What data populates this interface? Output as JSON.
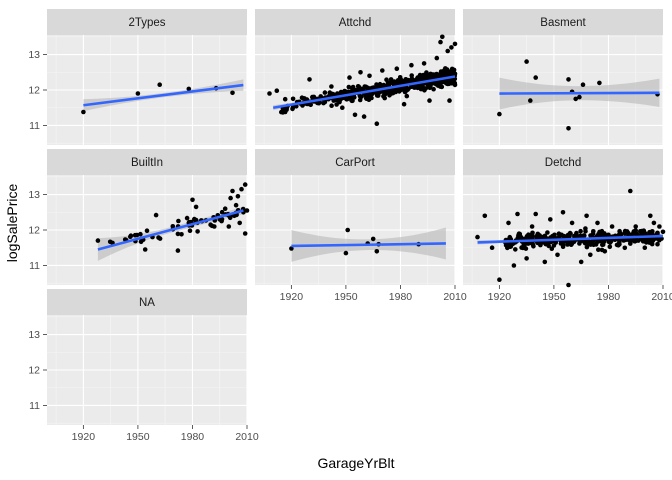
{
  "chart_data": {
    "type": "scatter",
    "facet_by": "GarageType",
    "xlabel": "GarageYrBlt",
    "ylabel": "logSalePrice",
    "xlim": [
      1900,
      2010
    ],
    "ylim": [
      10.45,
      13.55
    ],
    "x_ticks": [
      1920,
      1950,
      1980,
      2010
    ],
    "y_ticks": [
      11,
      12,
      13
    ],
    "grid": true,
    "smooth": "lm",
    "colors": {
      "panel_bg": "#ebebeb",
      "strip_bg": "#d9d9d9",
      "grid_major": "#ffffff",
      "grid_minor": "#f5f5f5",
      "points": "#000000",
      "fit_line": "#3366ff",
      "ribbon": "#b3b3b3"
    },
    "facets": [
      {
        "label": "2Types",
        "fit": {
          "x": [
            1920,
            2008
          ],
          "y": [
            11.57,
            12.14
          ]
        },
        "ribbon_width": [
          0.17,
          0.06,
          0.16
        ],
        "points": [
          [
            1920,
            11.38
          ],
          [
            1950,
            11.9
          ],
          [
            1962,
            12.15
          ],
          [
            1978,
            12.03
          ],
          [
            1993,
            12.05
          ],
          [
            2002,
            11.92
          ]
        ]
      },
      {
        "label": "Attchd",
        "fit": {
          "x": [
            1910,
            2010
          ],
          "y": [
            11.5,
            12.38
          ]
        },
        "ribbon_width": [
          0.07,
          0.015,
          0.03
        ],
        "n_points": 650,
        "points": [
          [
            1908,
            11.9
          ],
          [
            1912,
            11.98
          ],
          [
            1925,
            11.62
          ],
          [
            1930,
            12.3
          ],
          [
            1935,
            11.7
          ],
          [
            1942,
            12.1
          ],
          [
            1948,
            11.5
          ],
          [
            1952,
            12.35
          ],
          [
            1955,
            11.3
          ],
          [
            1958,
            12.5
          ],
          [
            1960,
            11.25
          ],
          [
            1963,
            12.4
          ],
          [
            1967,
            11.05
          ],
          [
            1970,
            12.55
          ],
          [
            1975,
            11.9
          ],
          [
            1978,
            12.6
          ],
          [
            1982,
            11.6
          ],
          [
            1986,
            12.7
          ],
          [
            1990,
            12.3
          ],
          [
            1993,
            12.75
          ],
          [
            1996,
            11.7
          ],
          [
            1998,
            12.2
          ],
          [
            2000,
            12.9
          ],
          [
            2002,
            13.35
          ],
          [
            2003,
            13.5
          ],
          [
            2004,
            12.55
          ],
          [
            2006,
            13.1
          ],
          [
            2007,
            11.7
          ],
          [
            2008,
            13.2
          ],
          [
            2009,
            12.3
          ],
          [
            2010,
            13.3
          ]
        ]
      },
      {
        "label": "Basment",
        "fit": {
          "x": [
            1920,
            2008
          ],
          "y": [
            11.9,
            11.92
          ]
        },
        "ribbon_width": [
          0.45,
          0.2,
          0.4
        ],
        "points": [
          [
            1920,
            11.32
          ],
          [
            1935,
            12.8
          ],
          [
            1937,
            11.7
          ],
          [
            1940,
            12.35
          ],
          [
            1958,
            12.3
          ],
          [
            1960,
            11.95
          ],
          [
            1962,
            11.75
          ],
          [
            1958,
            10.92
          ],
          [
            1964,
            11.8
          ],
          [
            1966,
            12.15
          ],
          [
            1975,
            12.2
          ],
          [
            2007,
            11.88
          ]
        ]
      },
      {
        "label": "BuiltIn",
        "fit": {
          "x": [
            1928,
            2008
          ],
          "y": [
            11.45,
            12.55
          ]
        },
        "ribbon_width": [
          0.32,
          0.08,
          0.11
        ],
        "n_points": 80,
        "points": [
          [
            1928,
            11.7
          ],
          [
            1954,
            11.45
          ],
          [
            1955,
            11.98
          ],
          [
            1958,
            11.8
          ],
          [
            1960,
            12.42
          ],
          [
            1972,
            11.42
          ],
          [
            1974,
            11.88
          ],
          [
            1978,
            12.2
          ],
          [
            1980,
            12.85
          ],
          [
            1982,
            12.65
          ],
          [
            1990,
            12.15
          ],
          [
            1992,
            12.1
          ],
          [
            1995,
            12.3
          ],
          [
            1998,
            12.6
          ],
          [
            2000,
            12.1
          ],
          [
            2001,
            12.9
          ],
          [
            2002,
            13.1
          ],
          [
            2003,
            12.4
          ],
          [
            2004,
            12.7
          ],
          [
            2005,
            12.95
          ],
          [
            2006,
            12.2
          ],
          [
            2007,
            13.15
          ],
          [
            2008,
            12.5
          ],
          [
            2009,
            13.28
          ],
          [
            2009,
            11.9
          ],
          [
            2010,
            12.55
          ]
        ]
      },
      {
        "label": "CarPort",
        "fit": {
          "x": [
            1920,
            2005
          ],
          "y": [
            11.55,
            11.62
          ]
        },
        "ribbon_width": [
          0.45,
          0.15,
          0.45
        ],
        "points": [
          [
            1920,
            11.48
          ],
          [
            1950,
            11.35
          ],
          [
            1951,
            12.0
          ],
          [
            1962,
            11.62
          ],
          [
            1965,
            11.75
          ],
          [
            1967,
            11.4
          ],
          [
            1968,
            11.6
          ],
          [
            1990,
            11.6
          ]
        ]
      },
      {
        "label": "Detchd",
        "fit": {
          "x": [
            1908,
            2010
          ],
          "y": [
            11.65,
            11.83
          ]
        },
        "ribbon_width": [
          0.06,
          0.02,
          0.06
        ],
        "n_points": 380,
        "points": [
          [
            1908,
            11.8
          ],
          [
            1912,
            12.4
          ],
          [
            1916,
            11.5
          ],
          [
            1920,
            10.6
          ],
          [
            1925,
            12.2
          ],
          [
            1928,
            11.0
          ],
          [
            1930,
            12.45
          ],
          [
            1935,
            11.2
          ],
          [
            1938,
            12.1
          ],
          [
            1940,
            12.45
          ],
          [
            1945,
            11.1
          ],
          [
            1948,
            12.3
          ],
          [
            1952,
            11.3
          ],
          [
            1955,
            12.5
          ],
          [
            1958,
            10.45
          ],
          [
            1960,
            12.2
          ],
          [
            1965,
            11.1
          ],
          [
            1968,
            12.4
          ],
          [
            1970,
            11.3
          ],
          [
            1974,
            12.2
          ],
          [
            1978,
            11.4
          ],
          [
            1982,
            12.1
          ],
          [
            1986,
            11.6
          ],
          [
            1992,
            13.1
          ],
          [
            1995,
            12.1
          ],
          [
            2000,
            11.5
          ],
          [
            2003,
            12.4
          ],
          [
            2005,
            12.2
          ],
          [
            2007,
            11.6
          ],
          [
            2008,
            12.1
          ],
          [
            2010,
            11.95
          ]
        ]
      },
      {
        "label": "NA",
        "points": []
      }
    ]
  }
}
